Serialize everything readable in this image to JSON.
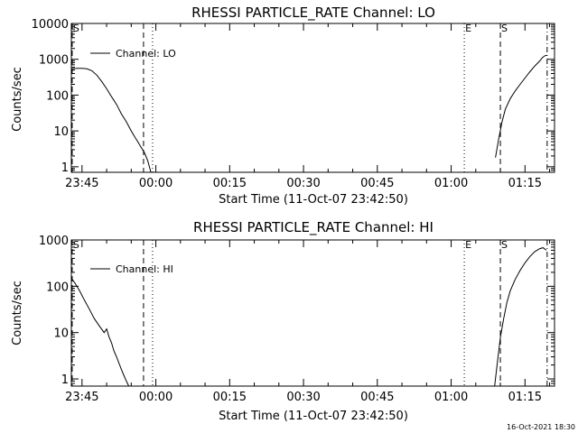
{
  "footer": {
    "timestamp": "16-Oct-2021 18:30"
  },
  "chart_data": [
    {
      "type": "line",
      "title": "RHESSI PARTICLE_RATE Channel: LO",
      "xlabel": "Start Time (11-Oct-07 23:42:50)",
      "ylabel": "Counts/sec",
      "yscale": "log",
      "xlim": [
        "23:42:50",
        "01:21:00"
      ],
      "ylim": [
        0.7,
        10000
      ],
      "x_ticks": [
        "23:45",
        "00:00",
        "00:15",
        "00:30",
        "00:45",
        "01:00",
        "01:15"
      ],
      "y_ticks": [
        "1",
        "10",
        "100",
        "1000",
        "10000"
      ],
      "legend": {
        "position": "top-left",
        "entries": [
          "Channel: LO"
        ]
      },
      "markers": [
        {
          "time": "23:43:00",
          "label": "S",
          "style": "dashed"
        },
        {
          "time": "23:57:30",
          "label": "",
          "style": "dashed"
        },
        {
          "time": "23:59:20",
          "label": "",
          "style": "dotted"
        },
        {
          "time": "01:02:40",
          "label": "E",
          "style": "dotted"
        },
        {
          "time": "01:10:00",
          "label": "S",
          "style": "dashed"
        },
        {
          "time": "01:19:30",
          "label": "",
          "style": "dashdot"
        }
      ],
      "series": [
        {
          "name": "Channel: LO",
          "segments": [
            {
              "x": [
                "23:42:50",
                "23:44:00",
                "23:45:00",
                "23:46:00",
                "23:47:00",
                "23:48:00",
                "23:49:00",
                "23:50:00",
                "23:51:00",
                "23:52:00",
                "23:53:00",
                "23:54:00",
                "23:55:00",
                "23:55:40",
                "23:56:20",
                "23:57:00",
                "23:57:40",
                "23:58:20",
                "23:59:00"
              ],
              "y": [
                540,
                560,
                560,
                540,
                480,
                360,
                240,
                150,
                90,
                55,
                30,
                18,
                10,
                7,
                5,
                3.5,
                2.5,
                1.5,
                0.7
              ]
            },
            {
              "x": [
                "01:09:00",
                "01:09:40",
                "01:10:20",
                "01:11:00",
                "01:12:00",
                "01:13:00",
                "01:14:00",
                "01:15:00",
                "01:16:00",
                "01:17:00",
                "01:18:00",
                "01:18:30",
                "01:19:00",
                "01:19:30"
              ],
              "y": [
                1.8,
                6,
                18,
                40,
                80,
                130,
                200,
                300,
                450,
                650,
                900,
                1100,
                1250,
                1300
              ]
            }
          ]
        }
      ]
    },
    {
      "type": "line",
      "title": "RHESSI PARTICLE_RATE Channel: HI",
      "xlabel": "Start Time (11-Oct-07 23:42:50)",
      "ylabel": "Counts/sec",
      "yscale": "log",
      "xlim": [
        "23:42:50",
        "01:21:00"
      ],
      "ylim": [
        0.7,
        1000
      ],
      "x_ticks": [
        "23:45",
        "00:00",
        "00:15",
        "00:30",
        "00:45",
        "01:00",
        "01:15"
      ],
      "y_ticks": [
        "1",
        "10",
        "100",
        "1000"
      ],
      "legend": {
        "position": "top-left",
        "entries": [
          "Channel: HI"
        ]
      },
      "markers": [
        {
          "time": "23:43:00",
          "label": "S",
          "style": "dashed"
        },
        {
          "time": "23:57:30",
          "label": "",
          "style": "dashed"
        },
        {
          "time": "23:59:20",
          "label": "",
          "style": "dotted"
        },
        {
          "time": "01:02:40",
          "label": "E",
          "style": "dotted"
        },
        {
          "time": "01:10:00",
          "label": "S",
          "style": "dashed"
        },
        {
          "time": "01:19:30",
          "label": "",
          "style": "dashdot"
        }
      ],
      "series": [
        {
          "name": "Channel: HI",
          "segments": [
            {
              "x": [
                "23:42:50",
                "23:43:30",
                "23:44:30",
                "23:45:30",
                "23:46:30",
                "23:47:30",
                "23:48:30",
                "23:49:30",
                "23:50:00",
                "23:50:30",
                "23:51:00",
                "23:51:30",
                "23:52:00",
                "23:52:30",
                "23:53:00",
                "23:53:30",
                "23:54:00",
                "23:54:30"
              ],
              "y": [
                150,
                120,
                80,
                50,
                32,
                20,
                14,
                10,
                12,
                8,
                6,
                4,
                3,
                2.2,
                1.6,
                1.2,
                0.9,
                0.7
              ]
            },
            {
              "x": [
                "01:08:50",
                "01:09:20",
                "01:10:00",
                "01:10:40",
                "01:11:20",
                "01:12:00",
                "01:13:00",
                "01:14:00",
                "01:15:00",
                "01:16:00",
                "01:17:00",
                "01:18:00",
                "01:18:40",
                "01:19:20"
              ],
              "y": [
                0.7,
                2,
                8,
                20,
                45,
                80,
                140,
                220,
                320,
                440,
                560,
                650,
                680,
                600
              ]
            }
          ]
        }
      ]
    }
  ]
}
